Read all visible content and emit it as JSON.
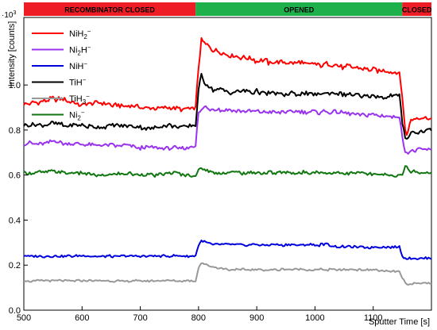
{
  "chart_data": {
    "type": "line",
    "ylabel": "Intensity [counts]",
    "y_multiplier": "·10",
    "y_multiplier_exp": "3",
    "xlabel": "Sputter Time [s]",
    "xlim": [
      500,
      1200
    ],
    "ylim": [
      0,
      1.3
    ],
    "xticks": [
      500,
      600,
      700,
      800,
      900,
      1000,
      1100
    ],
    "yticks": [
      0.0,
      0.2,
      0.4,
      0.6,
      0.8,
      1.0
    ],
    "ytick_labels": [
      "0.0",
      "0.2",
      "0.4",
      "0.6",
      "0.8",
      "1.0"
    ],
    "grid": false,
    "legend_position": "top-left",
    "phases": [
      {
        "label": "RECOMBINATOR CLOSED",
        "start": 500,
        "end": 795,
        "color": "#ee1c24"
      },
      {
        "label": "OPENED",
        "start": 795,
        "end": 1150,
        "color": "#1db04b"
      },
      {
        "label": "CLOSED",
        "start": 1150,
        "end": 1200,
        "color": "#ee1c24"
      }
    ],
    "x": [
      500,
      525,
      550,
      575,
      600,
      625,
      650,
      675,
      700,
      725,
      750,
      775,
      795,
      800,
      805,
      812,
      825,
      850,
      875,
      900,
      925,
      950,
      975,
      1000,
      1025,
      1050,
      1075,
      1100,
      1125,
      1145,
      1150,
      1155,
      1158,
      1165,
      1175,
      1200
    ],
    "series": [
      {
        "name": "NiH",
        "sub": "2",
        "sup": "−",
        "color": "#ff0000",
        "values": [
          0.92,
          0.92,
          0.94,
          0.93,
          0.91,
          0.92,
          0.91,
          0.91,
          0.9,
          0.9,
          0.9,
          0.89,
          0.9,
          1.08,
          1.2,
          1.18,
          1.16,
          1.14,
          1.12,
          1.11,
          1.1,
          1.1,
          1.1,
          1.09,
          1.09,
          1.08,
          1.08,
          1.07,
          1.06,
          1.05,
          0.95,
          0.8,
          0.78,
          0.84,
          0.85,
          0.85
        ]
      },
      {
        "name": "Ni",
        "sub": "2",
        "after": "H",
        "sup": "−",
        "color": "#9933ee",
        "values": [
          0.74,
          0.74,
          0.75,
          0.74,
          0.74,
          0.73,
          0.73,
          0.73,
          0.72,
          0.72,
          0.72,
          0.72,
          0.73,
          0.88,
          0.89,
          0.9,
          0.89,
          0.89,
          0.88,
          0.88,
          0.88,
          0.88,
          0.88,
          0.88,
          0.88,
          0.88,
          0.87,
          0.87,
          0.86,
          0.86,
          0.76,
          0.71,
          0.7,
          0.71,
          0.71,
          0.71
        ]
      },
      {
        "name": "NiH",
        "sub": "",
        "sup": "−",
        "color": "#0000dd",
        "values": [
          0.24,
          0.24,
          0.24,
          0.24,
          0.24,
          0.24,
          0.24,
          0.24,
          0.24,
          0.24,
          0.24,
          0.24,
          0.24,
          0.29,
          0.31,
          0.3,
          0.29,
          0.29,
          0.29,
          0.29,
          0.29,
          0.29,
          0.29,
          0.29,
          0.29,
          0.28,
          0.28,
          0.28,
          0.28,
          0.28,
          0.24,
          0.23,
          0.23,
          0.23,
          0.23,
          0.23
        ]
      },
      {
        "name": "TiH",
        "sub": "",
        "sup": "−",
        "color": "#000000",
        "values": [
          0.82,
          0.82,
          0.83,
          0.82,
          0.82,
          0.81,
          0.82,
          0.82,
          0.81,
          0.81,
          0.82,
          0.81,
          0.82,
          0.98,
          1.04,
          1.01,
          0.98,
          0.97,
          0.97,
          0.97,
          0.96,
          0.96,
          0.96,
          0.96,
          0.96,
          0.96,
          0.95,
          0.95,
          0.95,
          0.95,
          0.83,
          0.77,
          0.76,
          0.79,
          0.79,
          0.8
        ]
      },
      {
        "name": "TiH",
        "sub": "3",
        "sup": "−",
        "color": "#999999",
        "values": [
          0.13,
          0.13,
          0.13,
          0.13,
          0.13,
          0.13,
          0.13,
          0.13,
          0.13,
          0.13,
          0.13,
          0.13,
          0.13,
          0.19,
          0.21,
          0.2,
          0.19,
          0.18,
          0.18,
          0.18,
          0.18,
          0.18,
          0.18,
          0.18,
          0.18,
          0.18,
          0.18,
          0.18,
          0.17,
          0.17,
          0.14,
          0.12,
          0.11,
          0.12,
          0.12,
          0.12
        ]
      },
      {
        "name": "Ni",
        "sub": "2",
        "sup": "−",
        "color": "#117711",
        "values": [
          0.61,
          0.61,
          0.62,
          0.61,
          0.61,
          0.6,
          0.6,
          0.61,
          0.6,
          0.6,
          0.61,
          0.6,
          0.6,
          0.62,
          0.63,
          0.62,
          0.61,
          0.61,
          0.61,
          0.61,
          0.61,
          0.61,
          0.61,
          0.61,
          0.61,
          0.61,
          0.61,
          0.6,
          0.6,
          0.6,
          0.61,
          0.63,
          0.63,
          0.62,
          0.61,
          0.61
        ]
      }
    ]
  }
}
